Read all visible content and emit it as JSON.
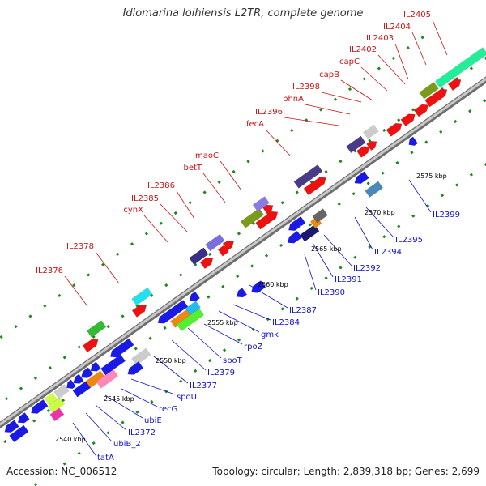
{
  "title": "Idiomarina loihiensis L2TR, complete genome",
  "footer": {
    "accession": "Accession: NC_006512",
    "summary": "Topology: circular; Length: 2,839,318 bp; Genes: 2,699"
  },
  "colors": {
    "backbone": "#9a9a9a",
    "forward_label": "#cc1111",
    "reverse_label": "#1111cc",
    "tick": "#1a8a1a"
  },
  "kbp_ticks": [
    "2540 kbp",
    "2545 kbp",
    "2550 kbp",
    "2555 kbp",
    "2560 kbp",
    "2565 kbp",
    "2570 kbp",
    "2575 kbp"
  ],
  "forward_labels": [
    "IL2376",
    "IL2378",
    "cynX",
    "IL2385",
    "IL2386",
    "betT",
    "maoC",
    "fecA",
    "IL2396",
    "phnA",
    "IL2398",
    "capB",
    "capC",
    "IL2402",
    "IL2403",
    "IL2404",
    "IL2405"
  ],
  "reverse_labels": [
    "tatA",
    "ubiB_2",
    "IL2372",
    "ubiE",
    "recG",
    "spoU",
    "IL2377",
    "IL2379",
    "spoT",
    "rpoZ",
    "gmk",
    "IL2384",
    "IL2387",
    "IL2390",
    "IL2391",
    "IL2392",
    "IL2394",
    "IL2395",
    "IL2399"
  ]
}
